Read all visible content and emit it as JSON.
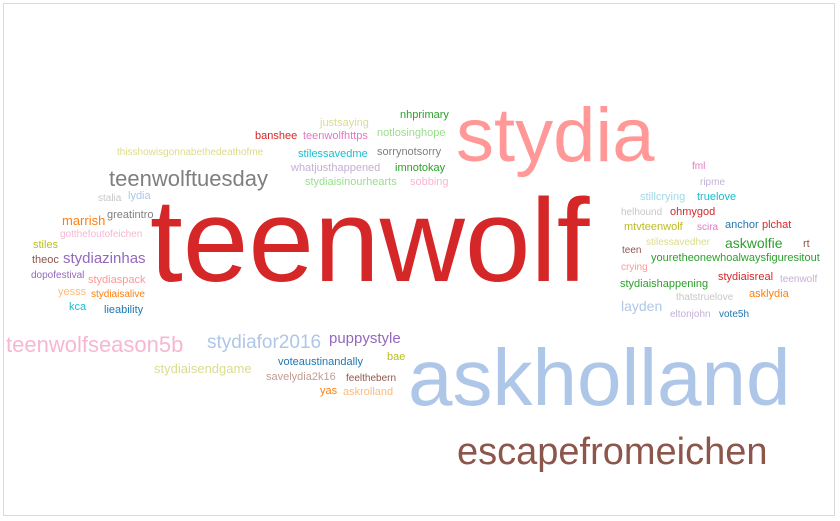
{
  "words": [
    {
      "text": "teenwolf",
      "color": "#d62728"
    },
    {
      "text": "askholland",
      "color": "#aec7e8"
    },
    {
      "text": "stydia",
      "color": "#ff9896"
    },
    {
      "text": "escapefromeichen",
      "color": "#8c564b"
    },
    {
      "text": "teenwolftuesday",
      "color": "#7f7f7f"
    },
    {
      "text": "teenwolfseason5b",
      "color": "#f7b6d2"
    },
    {
      "text": "stydiafor2016",
      "color": "#aec7e8"
    },
    {
      "text": "stydiazinhas",
      "color": "#9467bd"
    },
    {
      "text": "puppystyle",
      "color": "#9467bd"
    },
    {
      "text": "askwolfie",
      "color": "#2ca02c"
    },
    {
      "text": "layden",
      "color": "#aec7e8"
    },
    {
      "text": "marrish",
      "color": "#ff7f0e"
    },
    {
      "text": "stydiaisendgame",
      "color": "#dbdb8d"
    },
    {
      "text": "justsaying",
      "color": "#dbdb8d"
    },
    {
      "text": "nhprimary",
      "color": "#2ca02c"
    },
    {
      "text": "banshee",
      "color": "#d62728"
    },
    {
      "text": "teenwolfhttps",
      "color": "#e377c2"
    },
    {
      "text": "notlosinghope",
      "color": "#98df8a"
    },
    {
      "text": "thisshowisgonnabethedeathofme",
      "color": "#dbdb8d"
    },
    {
      "text": "stilessavedme",
      "color": "#17becf"
    },
    {
      "text": "sorrynotsorry",
      "color": "#7f7f7f"
    },
    {
      "text": "whatjusthappened",
      "color": "#c5b0d5"
    },
    {
      "text": "imnotokay",
      "color": "#2ca02c"
    },
    {
      "text": "stydiaisinourhearts",
      "color": "#98df8a"
    },
    {
      "text": "sobbing",
      "color": "#f7b6d2"
    },
    {
      "text": "fml",
      "color": "#e377c2"
    },
    {
      "text": "ripme",
      "color": "#c5b0d5"
    },
    {
      "text": "stalia",
      "color": "#c7c7c7"
    },
    {
      "text": "lydia",
      "color": "#aec7e8"
    },
    {
      "text": "greatintro",
      "color": "#7f7f7f"
    },
    {
      "text": "gotthefoutofeichen",
      "color": "#f7b6d2"
    },
    {
      "text": "stiles",
      "color": "#bcbd22"
    },
    {
      "text": "theoc",
      "color": "#8c564b"
    },
    {
      "text": "dopofestival",
      "color": "#9467bd"
    },
    {
      "text": "stydiaspack",
      "color": "#ff9896"
    },
    {
      "text": "yesss",
      "color": "#ffbb78"
    },
    {
      "text": "stydiaisalive",
      "color": "#ff7f0e"
    },
    {
      "text": "kca",
      "color": "#17becf"
    },
    {
      "text": "lieability",
      "color": "#1f77b4"
    },
    {
      "text": "stillcrying",
      "color": "#9edae5"
    },
    {
      "text": "truelove",
      "color": "#17becf"
    },
    {
      "text": "helhound",
      "color": "#c7c7c7"
    },
    {
      "text": "ohmygod",
      "color": "#d62728"
    },
    {
      "text": "mtvteenwolf",
      "color": "#bcbd22"
    },
    {
      "text": "scira",
      "color": "#e377c2"
    },
    {
      "text": "anchor",
      "color": "#1f77b4"
    },
    {
      "text": "plchat",
      "color": "#d62728"
    },
    {
      "text": "stilessavedher",
      "color": "#dbdb8d"
    },
    {
      "text": "rt",
      "color": "#8c564b"
    },
    {
      "text": "teen",
      "color": "#8c564b"
    },
    {
      "text": "youretheonewhoalwaysfiguresitout",
      "color": "#2ca02c"
    },
    {
      "text": "crying",
      "color": "#ff9896"
    },
    {
      "text": "stydiaisreal",
      "color": "#d62728"
    },
    {
      "text": "teenwolf",
      "color": "#c5b0d5"
    },
    {
      "text": "stydiaishappening",
      "color": "#2ca02c"
    },
    {
      "text": "asklydia",
      "color": "#ff7f0e"
    },
    {
      "text": "thatstruelove",
      "color": "#c7c7c7"
    },
    {
      "text": "eltonjohn",
      "color": "#c5b0d5"
    },
    {
      "text": "vote5h",
      "color": "#1f77b4"
    },
    {
      "text": "voteaustinandally",
      "color": "#1f77b4"
    },
    {
      "text": "bae",
      "color": "#bcbd22"
    },
    {
      "text": "savelydia2k16",
      "color": "#c49c94"
    },
    {
      "text": "feelthebern",
      "color": "#8c564b"
    },
    {
      "text": "yas",
      "color": "#ff7f0e"
    },
    {
      "text": "askrolland",
      "color": "#ffbb78"
    }
  ]
}
